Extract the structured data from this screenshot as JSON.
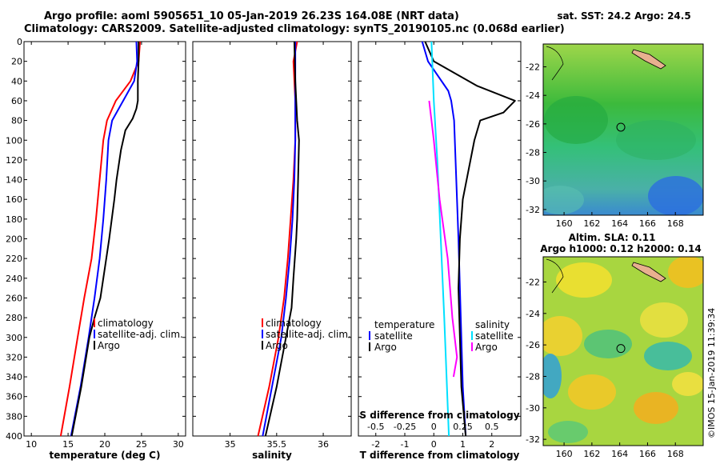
{
  "title_line1": "Argo profile: aoml 5905651_10 05-Jan-2019 26.23S 164.08E (NRT data)",
  "title_line2": "Climatology: CARS2009. Satellite-adjusted climatology: synTS_20190105.nc (0.068d earlier)",
  "colors": {
    "climatology": "#ff0000",
    "satellite": "#0000ff",
    "argo": "#000000",
    "cyan": "#00e0ff",
    "magenta": "#ff00ff"
  },
  "chart_data": [
    {
      "type": "line",
      "name": "temperature",
      "xlabel": "temperature (deg C)",
      "xlim": [
        9,
        31
      ],
      "ylim": [
        400,
        0
      ],
      "xticks": [
        10,
        15,
        20,
        25,
        30
      ],
      "yticks": [
        0,
        20,
        40,
        60,
        80,
        100,
        120,
        140,
        160,
        180,
        200,
        220,
        240,
        260,
        280,
        300,
        320,
        340,
        360,
        380,
        400
      ],
      "legend": [
        "climatology",
        "satellite-adj. clim.",
        "Argo"
      ],
      "series": [
        {
          "name": "climatology",
          "color": "climatology",
          "points": [
            [
              24.8,
              0
            ],
            [
              24.6,
              20
            ],
            [
              23.5,
              40
            ],
            [
              21.5,
              60
            ],
            [
              20.3,
              80
            ],
            [
              19.8,
              100
            ],
            [
              19.3,
              140
            ],
            [
              18.8,
              180
            ],
            [
              18.2,
              220
            ],
            [
              17.2,
              260
            ],
            [
              16.3,
              300
            ],
            [
              15.2,
              350
            ],
            [
              14.0,
              400
            ]
          ]
        },
        {
          "name": "satellite-adj. clim.",
          "color": "satellite",
          "points": [
            [
              24.3,
              0
            ],
            [
              24.4,
              20
            ],
            [
              24.0,
              40
            ],
            [
              22.5,
              60
            ],
            [
              21.0,
              80
            ],
            [
              20.5,
              100
            ],
            [
              20.2,
              140
            ],
            [
              19.8,
              180
            ],
            [
              19.3,
              220
            ],
            [
              18.6,
              260
            ],
            [
              17.8,
              300
            ],
            [
              16.7,
              350
            ],
            [
              15.4,
              400
            ]
          ]
        },
        {
          "name": "Argo",
          "color": "argo",
          "points": [
            [
              24.6,
              0
            ],
            [
              24.6,
              20
            ],
            [
              24.5,
              40
            ],
            [
              24.5,
              60
            ],
            [
              24.3,
              68
            ],
            [
              23.8,
              78
            ],
            [
              22.8,
              90
            ],
            [
              22.2,
              110
            ],
            [
              21.6,
              140
            ],
            [
              21.3,
              160
            ],
            [
              20.6,
              200
            ],
            [
              20.0,
              230
            ],
            [
              19.4,
              260
            ],
            [
              18.6,
              280
            ],
            [
              17.9,
              300
            ],
            [
              16.8,
              350
            ],
            [
              15.5,
              400
            ]
          ]
        }
      ]
    },
    {
      "type": "line",
      "name": "salinity",
      "xlabel": "salinity",
      "xlim": [
        34.6,
        36.3
      ],
      "ylim": [
        400,
        0
      ],
      "xticks": [
        35,
        35.5,
        36
      ],
      "legend": [
        "climatology",
        "satellite-adj. clim.",
        "Argo"
      ],
      "series": [
        {
          "name": "climatology",
          "color": "climatology",
          "points": [
            [
              35.72,
              0
            ],
            [
              35.68,
              20
            ],
            [
              35.7,
              60
            ],
            [
              35.7,
              100
            ],
            [
              35.68,
              140
            ],
            [
              35.65,
              180
            ],
            [
              35.62,
              220
            ],
            [
              35.58,
              260
            ],
            [
              35.52,
              300
            ],
            [
              35.42,
              350
            ],
            [
              35.3,
              400
            ]
          ]
        },
        {
          "name": "satellite-adj. clim.",
          "color": "satellite",
          "points": [
            [
              35.7,
              0
            ],
            [
              35.7,
              20
            ],
            [
              35.7,
              60
            ],
            [
              35.7,
              100
            ],
            [
              35.69,
              140
            ],
            [
              35.67,
              180
            ],
            [
              35.64,
              220
            ],
            [
              35.6,
              260
            ],
            [
              35.55,
              300
            ],
            [
              35.45,
              350
            ],
            [
              35.35,
              400
            ]
          ]
        },
        {
          "name": "Argo",
          "color": "argo",
          "points": [
            [
              35.69,
              0
            ],
            [
              35.7,
              40
            ],
            [
              35.72,
              80
            ],
            [
              35.74,
              100
            ],
            [
              35.73,
              140
            ],
            [
              35.72,
              180
            ],
            [
              35.71,
              200
            ],
            [
              35.68,
              240
            ],
            [
              35.66,
              270
            ],
            [
              35.6,
              300
            ],
            [
              35.5,
              350
            ],
            [
              35.38,
              400
            ]
          ]
        }
      ]
    },
    {
      "type": "line",
      "name": "difference",
      "xlabel": "T difference from climatology",
      "top_label": "S difference from climatology",
      "xlim": [
        -2.6,
        3.0
      ],
      "ylim": [
        400,
        0
      ],
      "xticks": [
        -2,
        -1,
        0,
        1,
        2
      ],
      "top_xlim": [
        -0.65,
        0.75
      ],
      "top_xticks": [
        "-0.5",
        "-0.25",
        "0",
        "0.25",
        "0.5"
      ],
      "legend_left_title": "temperature",
      "legend_right_title": "salinity",
      "legend_items": [
        "satellite",
        "Argo"
      ],
      "series": [
        {
          "name": "T satellite",
          "color": "satellite",
          "points": [
            [
              -0.4,
              0
            ],
            [
              -0.2,
              20
            ],
            [
              0.5,
              50
            ],
            [
              0.6,
              60
            ],
            [
              0.7,
              80
            ],
            [
              0.75,
              120
            ],
            [
              0.8,
              160
            ],
            [
              0.85,
              200
            ],
            [
              0.9,
              250
            ],
            [
              0.95,
              300
            ],
            [
              1.0,
              350
            ],
            [
              1.1,
              400
            ]
          ]
        },
        {
          "name": "T Argo",
          "color": "argo",
          "points": [
            [
              -0.3,
              0
            ],
            [
              0,
              20
            ],
            [
              1.5,
              45
            ],
            [
              2.8,
              60
            ],
            [
              2.4,
              72
            ],
            [
              1.6,
              80
            ],
            [
              1.4,
              100
            ],
            [
              1.2,
              130
            ],
            [
              1.0,
              160
            ],
            [
              0.9,
              200
            ],
            [
              0.85,
              250
            ],
            [
              0.9,
              300
            ],
            [
              0.95,
              350
            ],
            [
              1.1,
              400
            ]
          ]
        },
        {
          "name": "S satellite",
          "color": "cyan",
          "points": [
            [
              -0.02,
              0
            ],
            [
              0.0,
              60
            ],
            [
              0.03,
              120
            ],
            [
              0.06,
              200
            ],
            [
              0.09,
              280
            ],
            [
              0.11,
              340
            ],
            [
              0.13,
              400
            ]
          ]
        },
        {
          "name": "S Argo",
          "color": "magenta",
          "points": [
            [
              -0.04,
              60
            ],
            [
              0.0,
              100
            ],
            [
              0.05,
              160
            ],
            [
              0.12,
              220
            ],
            [
              0.16,
              280
            ],
            [
              0.2,
              320
            ],
            [
              0.17,
              340
            ]
          ]
        }
      ]
    },
    {
      "type": "heatmap",
      "name": "sst-map",
      "title": "sat. SST: 24.2 Argo: 24.5",
      "xlim": [
        158.5,
        170
      ],
      "ylim": [
        -32.4,
        -20.4
      ],
      "xticks": [
        160,
        162,
        164,
        166,
        168
      ],
      "yticks": [
        -22,
        -24,
        -26,
        -28,
        -30,
        -32
      ],
      "marker": [
        164.08,
        -26.23
      ]
    },
    {
      "type": "heatmap",
      "name": "sla-map",
      "title_line1": "Altim. SLA: 0.11",
      "title_line2": "Argo h1000: 0.12 h2000: 0.14",
      "xlim": [
        158.5,
        170
      ],
      "ylim": [
        -32.4,
        -20.4
      ],
      "xticks": [
        160,
        162,
        164,
        166,
        168
      ],
      "yticks": [
        -22,
        -24,
        -26,
        -28,
        -30,
        -32
      ],
      "marker": [
        164.08,
        -26.23
      ]
    }
  ],
  "credit": "©IMOS 15-Jan-2019 11:39:34"
}
